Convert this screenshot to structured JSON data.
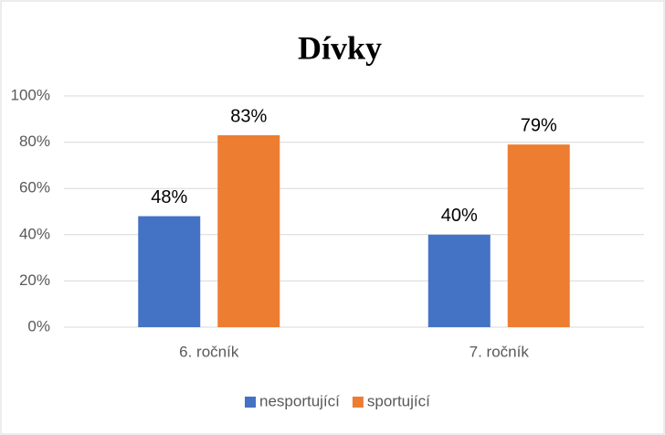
{
  "chart_data": {
    "type": "bar",
    "title": "Dívky",
    "categories": [
      "6. ročník",
      "7. ročník"
    ],
    "series": [
      {
        "name": "nesportující",
        "color": "#4472c4",
        "values": [
          48,
          40
        ],
        "value_labels": [
          "48%",
          "40%"
        ]
      },
      {
        "name": "sportující",
        "color": "#ed7d31",
        "values": [
          83,
          79
        ],
        "value_labels": [
          "83%",
          "79%"
        ]
      }
    ],
    "ylim": [
      0,
      100
    ],
    "yticks": [
      {
        "value": 0,
        "label": "0%"
      },
      {
        "value": 20,
        "label": "20%"
      },
      {
        "value": 40,
        "label": "40%"
      },
      {
        "value": 60,
        "label": "60%"
      },
      {
        "value": 80,
        "label": "80%"
      },
      {
        "value": 100,
        "label": "100%"
      }
    ],
    "grid": true,
    "legend": "bottom"
  }
}
